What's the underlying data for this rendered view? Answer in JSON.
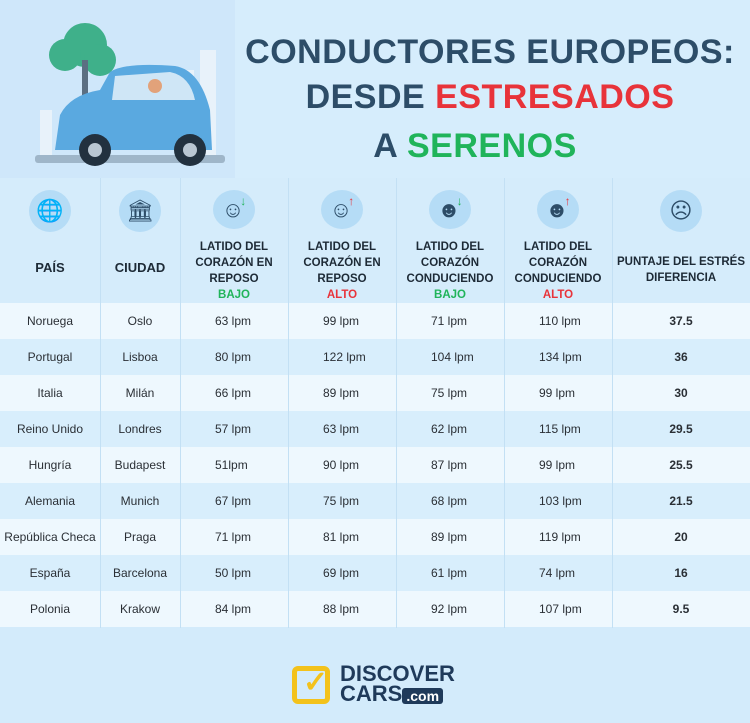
{
  "title": {
    "line1": "CONDUCTORES EUROPEOS:",
    "line2a": "DESDE ",
    "line2b": "ESTRESADOS",
    "line3a": "A ",
    "line3b": "SERENOS"
  },
  "headers": [
    {
      "label": "PAÍS",
      "icon": "globe-icon"
    },
    {
      "label": "CIUDAD",
      "icon": "building-icon"
    },
    {
      "label": "LATIDO DEL CORAZÓN EN REPOSO",
      "tag": "BAJO",
      "tag_color": "#20b45a",
      "icon": "relaxed-person-icon"
    },
    {
      "label": "LATIDO DEL CORAZÓN EN REPOSO",
      "tag": "ALTO",
      "tag_color": "#e8333a",
      "icon": "relaxed-person-icon"
    },
    {
      "label": "LATIDO DEL CORAZÓN CONDUCIENDO",
      "tag": "BAJO",
      "tag_color": "#20b45a",
      "icon": "driver-icon"
    },
    {
      "label": "LATIDO DEL CORAZÓN CONDUCIENDO",
      "tag": "ALTO",
      "tag_color": "#e8333a",
      "icon": "driver-icon"
    },
    {
      "label": "PUNTAJE DEL ESTRÉS DIFERENCIA",
      "icon": "stressed-person-icon"
    }
  ],
  "rows": [
    [
      "Noruega",
      "Oslo",
      "63 lpm",
      "99 lpm",
      "71 lpm",
      "110 lpm",
      "37.5"
    ],
    [
      "Portugal",
      "Lisboa",
      "80 lpm",
      "122 lpm",
      "104 lpm",
      "134 lpm",
      "36"
    ],
    [
      "Italia",
      "Milán",
      "66 lpm",
      "89 lpm",
      "75 lpm",
      "99 lpm",
      "30"
    ],
    [
      "Reino Unido",
      "Londres",
      "57 lpm",
      "63 lpm",
      "62 lpm",
      "115 lpm",
      "29.5"
    ],
    [
      "Hungría",
      "Budapest",
      "51lpm",
      "90 lpm",
      "87 lpm",
      "99 lpm",
      "25.5"
    ],
    [
      "Alemania",
      "Munich",
      "67 lpm",
      "75 lpm",
      "68 lpm",
      "103 lpm",
      "21.5"
    ],
    [
      "República Checa",
      "Praga",
      "71 lpm",
      "81 lpm",
      "89 lpm",
      "119 lpm",
      "20"
    ],
    [
      "España",
      "Barcelona",
      "50 lpm",
      "69 lpm",
      "61 lpm",
      "74 lpm",
      "16"
    ],
    [
      "Polonia",
      "Krakow",
      "84 lpm",
      "88 lpm",
      "92 lpm",
      "107 lpm",
      "9.5"
    ]
  ],
  "logo": {
    "line1": "DISCOVER",
    "line2": "CARS",
    "suffix": ".com"
  },
  "colors": {
    "accent_red": "#e8333a",
    "accent_green": "#20b45a",
    "navy": "#2d4d68",
    "logo_yellow": "#f3c21b"
  }
}
